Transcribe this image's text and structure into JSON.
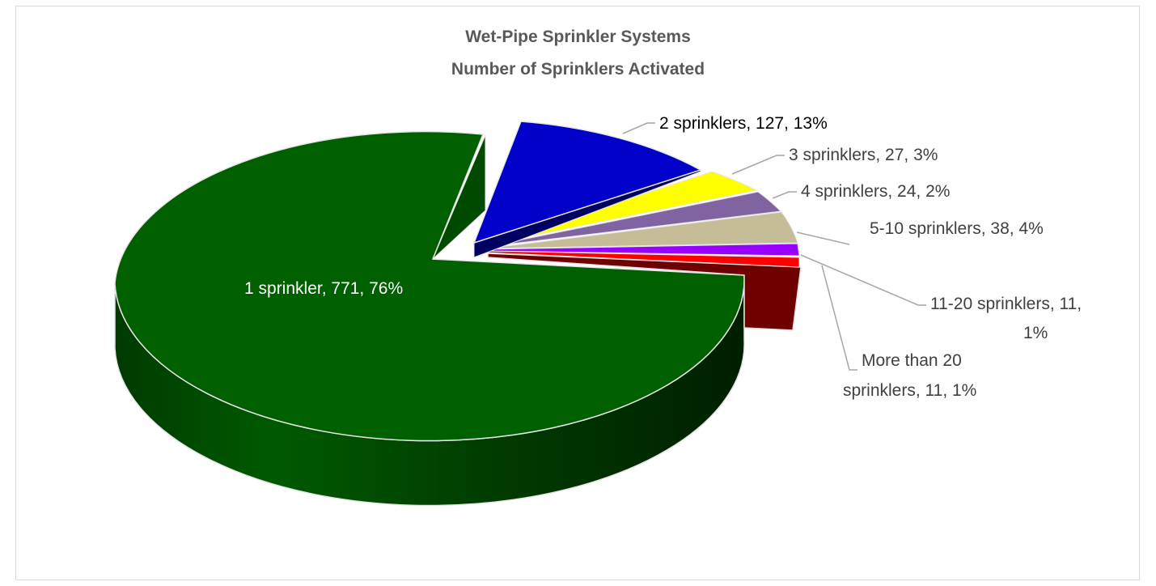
{
  "chart_data": {
    "type": "pie",
    "style": "3d-exploded",
    "title": "Wet-Pipe Sprinkler Systems",
    "subtitle": "Number of Sprinklers Activated",
    "legend": "none",
    "slices": [
      {
        "name": "1 sprinkler",
        "value": 771,
        "percent": "76%",
        "color": "#006000",
        "label": "1 sprinkler, 771, 76%"
      },
      {
        "name": "2 sprinklers",
        "value": 127,
        "percent": "13%",
        "color": "#0000c8",
        "label": "2 sprinklers, 127, 13%"
      },
      {
        "name": "3 sprinklers",
        "value": 27,
        "percent": "3%",
        "color": "#ffff00",
        "label": "3 sprinklers, 27, 3%"
      },
      {
        "name": "4 sprinklers",
        "value": 24,
        "percent": "2%",
        "color": "#8064a2",
        "label": "4 sprinklers, 24, 2%"
      },
      {
        "name": "5-10 sprinklers",
        "value": 38,
        "percent": "4%",
        "color": "#c4bd97",
        "label": "5-10 sprinklers, 38, 4%"
      },
      {
        "name": "11-20 sprinklers",
        "value": 11,
        "percent": "1%",
        "color": "#9900ff",
        "label": "11-20 sprinklers, 11, 1%"
      },
      {
        "name": "More than 20 sprinklers",
        "value": 11,
        "percent": "1%",
        "color": "#ff0000",
        "label": "More than 20 sprinklers, 11, 1%"
      }
    ]
  },
  "labels": {
    "l1": "1 sprinkler, 771, 76%",
    "l2": "2 sprinklers, 127, 13%",
    "l3": "3 sprinklers, 27, 3%",
    "l4": "4 sprinklers, 24, 2%",
    "l5": "5-10 sprinklers, 38, 4%",
    "l6a": "11-20 sprinklers, 11,",
    "l6b": "1%",
    "l7a": "More than 20",
    "l7b": "sprinklers, 11, 1%"
  }
}
